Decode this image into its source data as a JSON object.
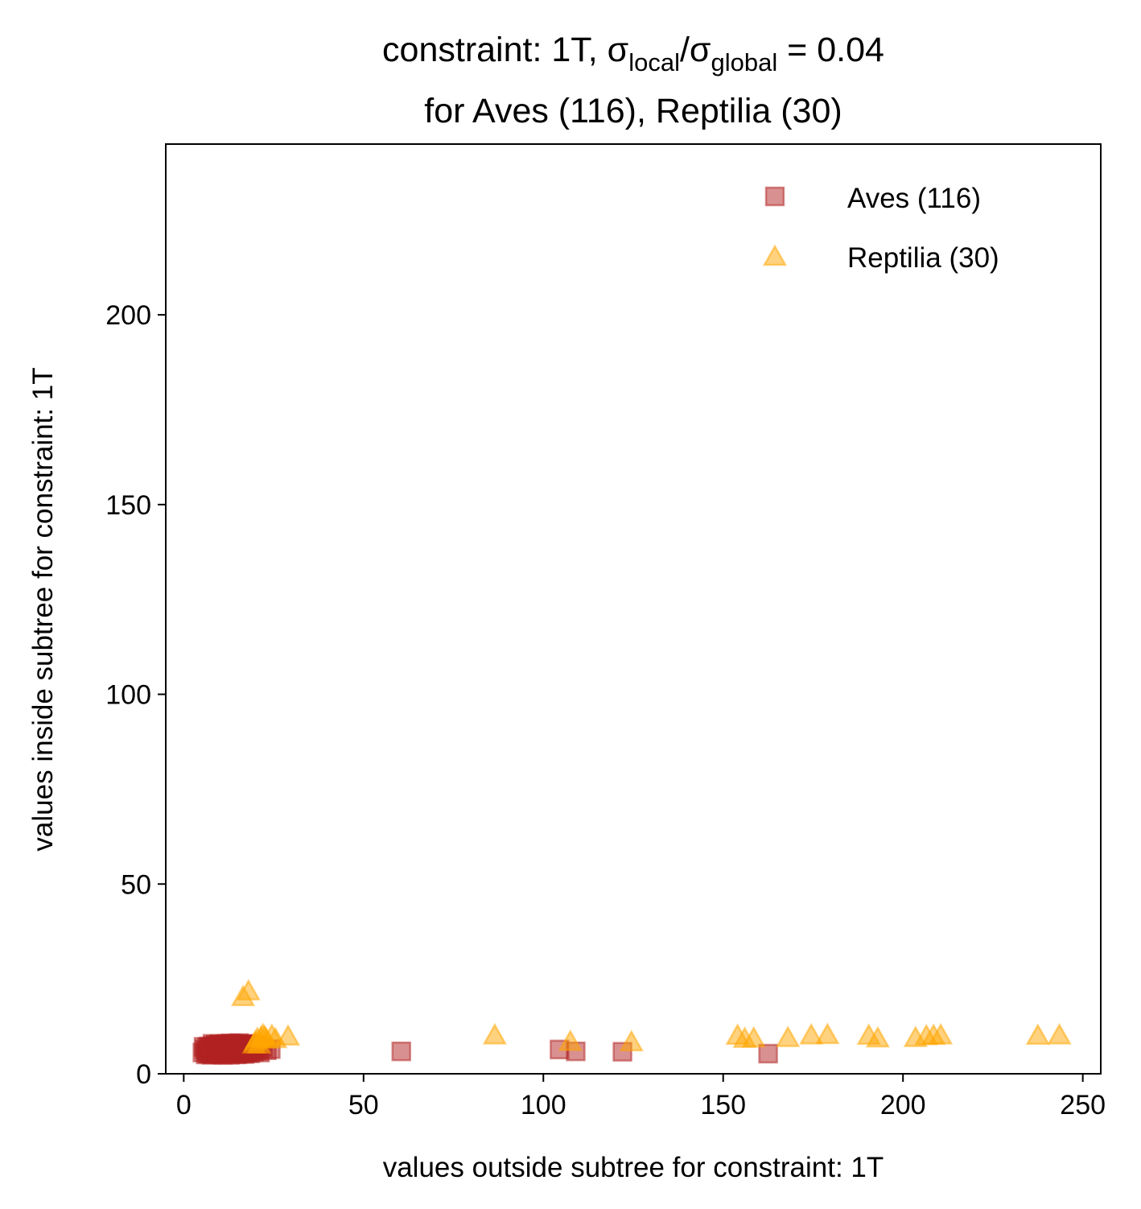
{
  "chart_data": {
    "type": "scatter",
    "title": {
      "line1": {
        "prefix": "constraint: 1T, σ",
        "sub1": "local",
        "mid": "/σ",
        "sub2": "global",
        "suffix": " =  0.04"
      },
      "line2": "for Aves (116), Reptilia (30)"
    },
    "xlabel": "values outside subtree for constraint: 1T",
    "ylabel": "values inside subtree for constraint: 1T",
    "xlim": [
      -5,
      255
    ],
    "ylim": [
      0,
      245
    ],
    "x_ticks": [
      0,
      50,
      100,
      150,
      200,
      250
    ],
    "y_ticks": [
      0,
      50,
      100,
      150,
      200
    ],
    "legend_position": "top-right",
    "series": [
      {
        "name": "Aves (116)",
        "marker": "square",
        "color": "#b22222",
        "points": [
          [
            5.2,
            5.6
          ],
          [
            5.8,
            6.4
          ],
          [
            6.1,
            5.1
          ],
          [
            6.5,
            7.0
          ],
          [
            6.9,
            6.0
          ],
          [
            7.2,
            5.4
          ],
          [
            7.5,
            6.8
          ],
          [
            7.8,
            5.9
          ],
          [
            8.1,
            7.3
          ],
          [
            8.3,
            5.2
          ],
          [
            8.6,
            6.5
          ],
          [
            8.9,
            7.6
          ],
          [
            9.1,
            5.7
          ],
          [
            9.3,
            6.9
          ],
          [
            9.6,
            5.3
          ],
          [
            9.8,
            7.8
          ],
          [
            10.1,
            6.2
          ],
          [
            10.3,
            5.5
          ],
          [
            10.5,
            7.1
          ],
          [
            10.8,
            6.6
          ],
          [
            11.0,
            5.0
          ],
          [
            11.2,
            7.5
          ],
          [
            11.4,
            6.0
          ],
          [
            11.6,
            5.8
          ],
          [
            11.9,
            7.9
          ],
          [
            12.1,
            6.3
          ],
          [
            12.3,
            5.4
          ],
          [
            12.5,
            7.2
          ],
          [
            12.7,
            6.7
          ],
          [
            12.9,
            5.9
          ],
          [
            13.1,
            8.0
          ],
          [
            13.3,
            6.1
          ],
          [
            13.5,
            5.3
          ],
          [
            13.7,
            7.4
          ],
          [
            13.9,
            6.8
          ],
          [
            14.1,
            5.6
          ],
          [
            14.3,
            7.7
          ],
          [
            14.5,
            6.4
          ],
          [
            14.7,
            5.1
          ],
          [
            14.9,
            7.0
          ],
          [
            15.1,
            6.2
          ],
          [
            15.3,
            8.1
          ],
          [
            15.5,
            5.7
          ],
          [
            15.7,
            6.9
          ],
          [
            15.9,
            7.5
          ],
          [
            16.1,
            5.5
          ],
          [
            16.3,
            6.6
          ],
          [
            16.5,
            7.8
          ],
          [
            16.7,
            6.0
          ],
          [
            16.9,
            5.2
          ],
          [
            17.1,
            7.3
          ],
          [
            17.3,
            6.5
          ],
          [
            17.6,
            5.9
          ],
          [
            17.9,
            7.9
          ],
          [
            18.2,
            6.3
          ],
          [
            18.5,
            5.4
          ],
          [
            18.8,
            7.1
          ],
          [
            19.1,
            6.7
          ],
          [
            19.5,
            5.8
          ],
          [
            20.0,
            7.4
          ],
          [
            20.6,
            6.1
          ],
          [
            21.2,
            5.6
          ],
          [
            22.0,
            7.0
          ],
          [
            23.1,
            6.2
          ],
          [
            24.2,
            6.5
          ],
          [
            6.3,
            6.0
          ],
          [
            7.0,
            7.2
          ],
          [
            7.7,
            5.0
          ],
          [
            8.4,
            6.1
          ],
          [
            9.0,
            7.4
          ],
          [
            9.7,
            6.4
          ],
          [
            10.4,
            5.1
          ],
          [
            11.1,
            6.9
          ],
          [
            11.8,
            7.3
          ],
          [
            12.4,
            5.6
          ],
          [
            13.0,
            6.4
          ],
          [
            13.6,
            7.9
          ],
          [
            14.2,
            5.8
          ],
          [
            14.8,
            6.3
          ],
          [
            15.4,
            7.2
          ],
          [
            16.0,
            5.4
          ],
          [
            16.6,
            6.8
          ],
          [
            17.2,
            7.6
          ],
          [
            17.8,
            5.5
          ],
          [
            18.4,
            6.9
          ],
          [
            19.0,
            7.7
          ],
          [
            19.8,
            6.4
          ],
          [
            5.5,
            7.1
          ],
          [
            6.7,
            5.3
          ],
          [
            7.4,
            6.6
          ],
          [
            8.0,
            7.9
          ],
          [
            8.8,
            5.5
          ],
          [
            9.5,
            6.1
          ],
          [
            10.2,
            7.6
          ],
          [
            10.9,
            5.9
          ],
          [
            11.5,
            6.5
          ],
          [
            12.2,
            7.7
          ],
          [
            12.8,
            5.0
          ],
          [
            13.4,
            6.6
          ],
          [
            14.0,
            7.3
          ],
          [
            14.6,
            6.1
          ],
          [
            15.2,
            5.3
          ],
          [
            15.8,
            7.4
          ],
          [
            16.4,
            6.2
          ],
          [
            17.0,
            5.9
          ],
          [
            17.5,
            6.9
          ],
          [
            18.0,
            6.6
          ],
          [
            18.6,
            7.5
          ],
          [
            19.3,
            6.2
          ],
          [
            20.3,
            6.8
          ],
          [
            60.5,
            5.9
          ],
          [
            104.5,
            6.4
          ],
          [
            109.0,
            5.9
          ],
          [
            122.0,
            5.8
          ],
          [
            162.5,
            5.3
          ],
          [
            8.6,
            5.7
          ]
        ]
      },
      {
        "name": "Reptilia (30)",
        "marker": "triangle",
        "color": "#ffa500",
        "points": [
          [
            16.5,
            20.0
          ],
          [
            18.0,
            21.5
          ],
          [
            19.5,
            7.5
          ],
          [
            20.5,
            9.0
          ],
          [
            21.0,
            7.5
          ],
          [
            22.0,
            10.0
          ],
          [
            22.5,
            9.5
          ],
          [
            23.0,
            8.8
          ],
          [
            24.5,
            9.8
          ],
          [
            25.5,
            8.9
          ],
          [
            29.0,
            9.6
          ],
          [
            86.5,
            9.9
          ],
          [
            107.5,
            8.2
          ],
          [
            124.5,
            8.1
          ],
          [
            154.0,
            9.8
          ],
          [
            156.0,
            9.0
          ],
          [
            158.5,
            9.1
          ],
          [
            168.0,
            9.2
          ],
          [
            174.5,
            9.9
          ],
          [
            179.0,
            10.0
          ],
          [
            190.5,
            9.8
          ],
          [
            193.0,
            9.1
          ],
          [
            203.5,
            9.2
          ],
          [
            206.5,
            9.7
          ],
          [
            208.5,
            9.8
          ],
          [
            210.5,
            9.9
          ],
          [
            237.5,
            9.8
          ],
          [
            243.5,
            9.9
          ],
          [
            21.5,
            9.3
          ],
          [
            20.0,
            8.2
          ]
        ]
      }
    ]
  }
}
